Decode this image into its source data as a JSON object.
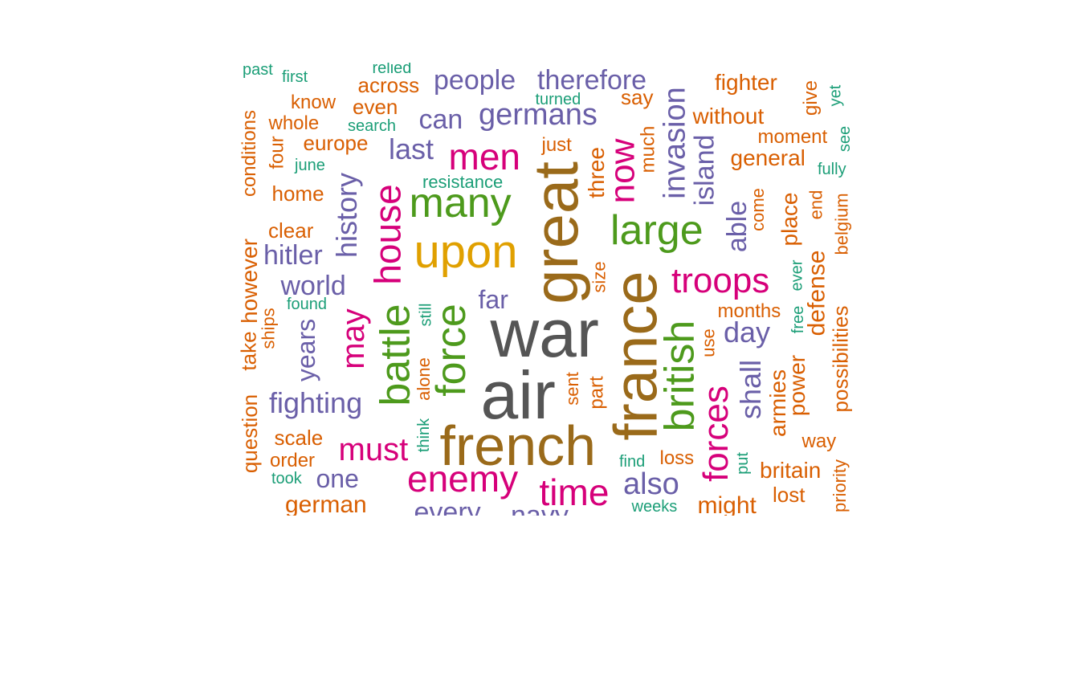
{
  "palette": {
    "orange": "#d95f02",
    "teal": "#1b9e77",
    "purple": "#6a5fa8",
    "magenta": "#d6007a",
    "green": "#4d9a1c",
    "gold": "#e0a000",
    "brown": "#9a6a1a",
    "gray": "#555555"
  },
  "words": [
    {
      "text": "war",
      "color": "gray",
      "size": 84
    },
    {
      "text": "air",
      "color": "gray",
      "size": 84
    },
    {
      "text": "great",
      "color": "brown",
      "size": 78
    },
    {
      "text": "france",
      "color": "brown",
      "size": 76
    },
    {
      "text": "french",
      "color": "brown",
      "size": 70
    },
    {
      "text": "upon",
      "color": "gold",
      "size": 58
    },
    {
      "text": "many",
      "color": "green",
      "size": 52
    },
    {
      "text": "large",
      "color": "green",
      "size": 52
    },
    {
      "text": "british",
      "color": "green",
      "size": 52
    },
    {
      "text": "force",
      "color": "green",
      "size": 52
    },
    {
      "text": "battle",
      "color": "green",
      "size": 52
    },
    {
      "text": "enemy",
      "color": "magenta",
      "size": 46
    },
    {
      "text": "time",
      "color": "magenta",
      "size": 46
    },
    {
      "text": "men",
      "color": "magenta",
      "size": 46
    },
    {
      "text": "house",
      "color": "magenta",
      "size": 46
    },
    {
      "text": "now",
      "color": "magenta",
      "size": 44
    },
    {
      "text": "forces",
      "color": "magenta",
      "size": 44
    },
    {
      "text": "troops",
      "color": "magenta",
      "size": 44
    },
    {
      "text": "must",
      "color": "magenta",
      "size": 40
    },
    {
      "text": "may",
      "color": "magenta",
      "size": 40
    },
    {
      "text": "germans",
      "color": "purple",
      "size": 38
    },
    {
      "text": "invasion",
      "color": "purple",
      "size": 38
    },
    {
      "text": "people",
      "color": "purple",
      "size": 34
    },
    {
      "text": "therefore",
      "color": "purple",
      "size": 34
    },
    {
      "text": "also",
      "color": "purple",
      "size": 38
    },
    {
      "text": "fighting",
      "color": "purple",
      "size": 36
    },
    {
      "text": "history",
      "color": "purple",
      "size": 36
    },
    {
      "text": "hitler",
      "color": "purple",
      "size": 34
    },
    {
      "text": "world",
      "color": "purple",
      "size": 34
    },
    {
      "text": "last",
      "color": "purple",
      "size": 36
    },
    {
      "text": "can",
      "color": "purple",
      "size": 34
    },
    {
      "text": "day",
      "color": "purple",
      "size": 36
    },
    {
      "text": "shall",
      "color": "purple",
      "size": 36
    },
    {
      "text": "far",
      "color": "purple",
      "size": 32
    },
    {
      "text": "one",
      "color": "purple",
      "size": 32
    },
    {
      "text": "years",
      "color": "purple",
      "size": 32
    },
    {
      "text": "island",
      "color": "purple",
      "size": 34
    },
    {
      "text": "able",
      "color": "purple",
      "size": 34
    },
    {
      "text": "every",
      "color": "purple",
      "size": 34
    },
    {
      "text": "navy",
      "color": "purple",
      "size": 34
    },
    {
      "text": "fighter",
      "color": "orange",
      "size": 28
    },
    {
      "text": "across",
      "color": "orange",
      "size": 26
    },
    {
      "text": "even",
      "color": "orange",
      "size": 26
    },
    {
      "text": "know",
      "color": "orange",
      "size": 24
    },
    {
      "text": "whole",
      "color": "orange",
      "size": 24
    },
    {
      "text": "europe",
      "color": "orange",
      "size": 26
    },
    {
      "text": "home",
      "color": "orange",
      "size": 26
    },
    {
      "text": "clear",
      "color": "orange",
      "size": 26
    },
    {
      "text": "scale",
      "color": "orange",
      "size": 26
    },
    {
      "text": "order",
      "color": "orange",
      "size": 24
    },
    {
      "text": "german",
      "color": "orange",
      "size": 30
    },
    {
      "text": "might",
      "color": "orange",
      "size": 30
    },
    {
      "text": "without",
      "color": "orange",
      "size": 28
    },
    {
      "text": "moment",
      "color": "orange",
      "size": 24
    },
    {
      "text": "general",
      "color": "orange",
      "size": 28
    },
    {
      "text": "say",
      "color": "orange",
      "size": 26
    },
    {
      "text": "just",
      "color": "orange",
      "size": 24
    },
    {
      "text": "much",
      "color": "orange",
      "size": 24
    },
    {
      "text": "three",
      "color": "orange",
      "size": 28
    },
    {
      "text": "months",
      "color": "orange",
      "size": 24
    },
    {
      "text": "place",
      "color": "orange",
      "size": 28
    },
    {
      "text": "defense",
      "color": "orange",
      "size": 30
    },
    {
      "text": "power",
      "color": "orange",
      "size": 28
    },
    {
      "text": "armies",
      "color": "orange",
      "size": 28
    },
    {
      "text": "possibilities",
      "color": "orange",
      "size": 26
    },
    {
      "text": "britain",
      "color": "orange",
      "size": 28
    },
    {
      "text": "way",
      "color": "orange",
      "size": 24
    },
    {
      "text": "loss",
      "color": "orange",
      "size": 24
    },
    {
      "text": "lost",
      "color": "orange",
      "size": 26
    },
    {
      "text": "conditions",
      "color": "orange",
      "size": 24
    },
    {
      "text": "however",
      "color": "orange",
      "size": 28
    },
    {
      "text": "take",
      "color": "orange",
      "size": 26
    },
    {
      "text": "question",
      "color": "orange",
      "size": 26
    },
    {
      "text": "ships",
      "color": "orange",
      "size": 22
    },
    {
      "text": "four",
      "color": "orange",
      "size": 24
    },
    {
      "text": "give",
      "color": "orange",
      "size": 24
    },
    {
      "text": "come",
      "color": "orange",
      "size": 22
    },
    {
      "text": "end",
      "color": "orange",
      "size": 22
    },
    {
      "text": "belgium",
      "color": "orange",
      "size": 22
    },
    {
      "text": "sent",
      "color": "orange",
      "size": 22
    },
    {
      "text": "part",
      "color": "orange",
      "size": 24
    },
    {
      "text": "size",
      "color": "orange",
      "size": 22
    },
    {
      "text": "use",
      "color": "orange",
      "size": 22
    },
    {
      "text": "alone",
      "color": "orange",
      "size": 22
    },
    {
      "text": "priority",
      "color": "orange",
      "size": 22
    },
    {
      "text": "first",
      "color": "teal",
      "size": 20
    },
    {
      "text": "past",
      "color": "teal",
      "size": 20
    },
    {
      "text": "relied",
      "color": "teal",
      "size": 20
    },
    {
      "text": "turned",
      "color": "teal",
      "size": 20
    },
    {
      "text": "search",
      "color": "teal",
      "size": 20
    },
    {
      "text": "june",
      "color": "teal",
      "size": 20
    },
    {
      "text": "resistance",
      "color": "teal",
      "size": 22
    },
    {
      "text": "found",
      "color": "teal",
      "size": 20
    },
    {
      "text": "took",
      "color": "teal",
      "size": 20
    },
    {
      "text": "find",
      "color": "teal",
      "size": 20
    },
    {
      "text": "weeks",
      "color": "teal",
      "size": 20
    },
    {
      "text": "fully",
      "color": "teal",
      "size": 20
    },
    {
      "text": "yet",
      "color": "teal",
      "size": 20
    },
    {
      "text": "see",
      "color": "teal",
      "size": 20
    },
    {
      "text": "ever",
      "color": "teal",
      "size": 20
    },
    {
      "text": "free",
      "color": "teal",
      "size": 20
    },
    {
      "text": "still",
      "color": "teal",
      "size": 20
    },
    {
      "text": "think",
      "color": "teal",
      "size": 20
    },
    {
      "text": "put",
      "color": "teal",
      "size": 20
    }
  ]
}
